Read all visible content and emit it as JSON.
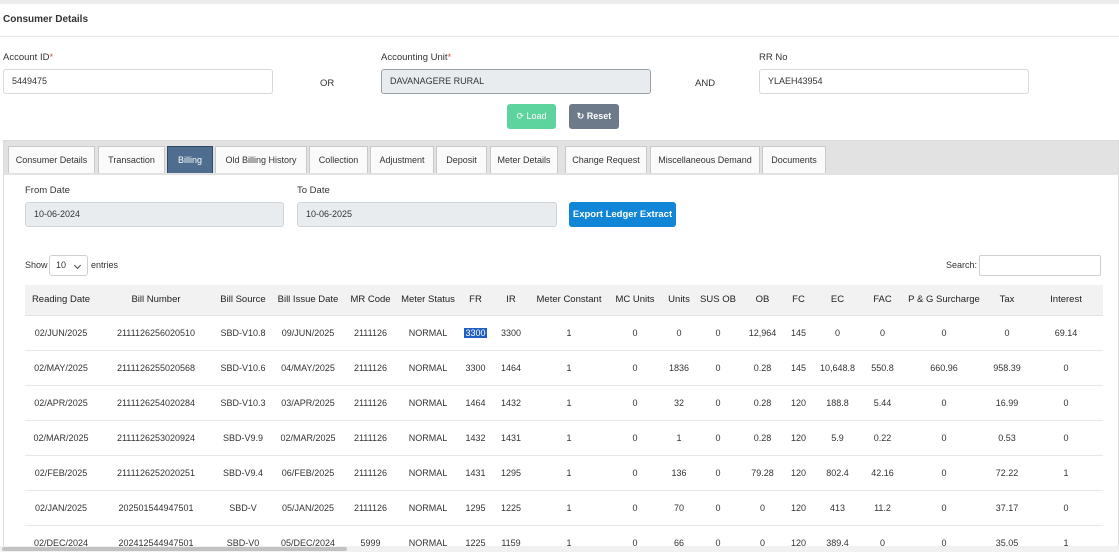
{
  "header": {
    "title": "Consumer Details"
  },
  "form": {
    "account_id_label": "Account ID",
    "account_id_value": "5449475",
    "or_text": "OR",
    "accounting_unit_label": "Accounting Unit",
    "accounting_unit_value": "DAVANAGERE RURAL",
    "and_text": "AND",
    "rr_no_label": "RR No",
    "rr_no_value": "YLAEH43954",
    "required_mark": "*",
    "load_label": "Load",
    "load_icon": "spinner-icon",
    "reset_label": "Reset",
    "reset_icon": "refresh-icon"
  },
  "tabs": [
    "Consumer Details",
    "Transaction",
    "Billing",
    "Old Billing History",
    "Collection",
    "Adjustment",
    "Deposit",
    "Meter Details",
    "Change Request",
    "Miscellaneous Demand",
    "Documents"
  ],
  "active_tab": "Billing",
  "billing": {
    "from_date_label": "From Date",
    "from_date_value": "10-06-2024",
    "to_date_label": "To Date",
    "to_date_value": "10-06-2025",
    "export_label": "Export Ledger Extract",
    "show_label": "Show",
    "entries_value": "10",
    "entries_label": "entries",
    "search_label": "Search:"
  },
  "table": {
    "columns": [
      "Reading Date",
      "Bill Number",
      "Bill Source",
      "Bill Issue Date",
      "MR Code",
      "Meter Status",
      "FR",
      "IR",
      "Meter Constant",
      "MC Units",
      "Units",
      "SUS OB",
      "OB",
      "FC",
      "EC",
      "FAC",
      "P & G Surcharge",
      "Tax",
      "Interest"
    ],
    "rows": [
      [
        "02/JUN/2025",
        "2111126256020510",
        "SBD-V10.8",
        "09/JUN/2025",
        "2111126",
        "NORMAL",
        "3300",
        "3300",
        "1",
        "0",
        "0",
        "0",
        "12,964",
        "145",
        "0",
        "0",
        "0",
        "0",
        "69.14"
      ],
      [
        "02/MAY/2025",
        "2111126255020568",
        "SBD-V10.6",
        "04/MAY/2025",
        "2111126",
        "NORMAL",
        "3300",
        "1464",
        "1",
        "0",
        "1836",
        "0",
        "0.28",
        "145",
        "10,648.8",
        "550.8",
        "660.96",
        "958.39",
        "0"
      ],
      [
        "02/APR/2025",
        "2111126254020284",
        "SBD-V10.3",
        "03/APR/2025",
        "2111126",
        "NORMAL",
        "1464",
        "1432",
        "1",
        "0",
        "32",
        "0",
        "0.28",
        "120",
        "188.8",
        "5.44",
        "0",
        "16.99",
        "0"
      ],
      [
        "02/MAR/2025",
        "2111126253020924",
        "SBD-V9.9",
        "02/MAR/2025",
        "2111126",
        "NORMAL",
        "1432",
        "1431",
        "1",
        "0",
        "1",
        "0",
        "0.28",
        "120",
        "5.9",
        "0.22",
        "0",
        "0.53",
        "0"
      ],
      [
        "02/FEB/2025",
        "2111126252020251",
        "SBD-V9.4",
        "06/FEB/2025",
        "2111126",
        "NORMAL",
        "1431",
        "1295",
        "1",
        "0",
        "136",
        "0",
        "79.28",
        "120",
        "802.4",
        "42.16",
        "0",
        "72.22",
        "1"
      ],
      [
        "02/JAN/2025",
        "202501544947501",
        "SBD-V",
        "05/JAN/2025",
        "2111126",
        "NORMAL",
        "1295",
        "1225",
        "1",
        "0",
        "70",
        "0",
        "0",
        "120",
        "413",
        "11.2",
        "0",
        "37.17",
        "0"
      ],
      [
        "02/DEC/2024",
        "202412544947501",
        "SBD-V0",
        "05/DEC/2024",
        "5999",
        "NORMAL",
        "1225",
        "1159",
        "1",
        "0",
        "66",
        "0",
        "0",
        "120",
        "389.4",
        "0",
        "0",
        "35.05",
        "1"
      ]
    ],
    "highlighted_cell": {
      "row": 0,
      "col": 6
    }
  },
  "colors": {
    "active_tab": "#4f6d8f",
    "load_button": "#5dd39e",
    "reset_button": "#6c7a89",
    "export_button": "#1185d6",
    "required": "#d9534f"
  }
}
